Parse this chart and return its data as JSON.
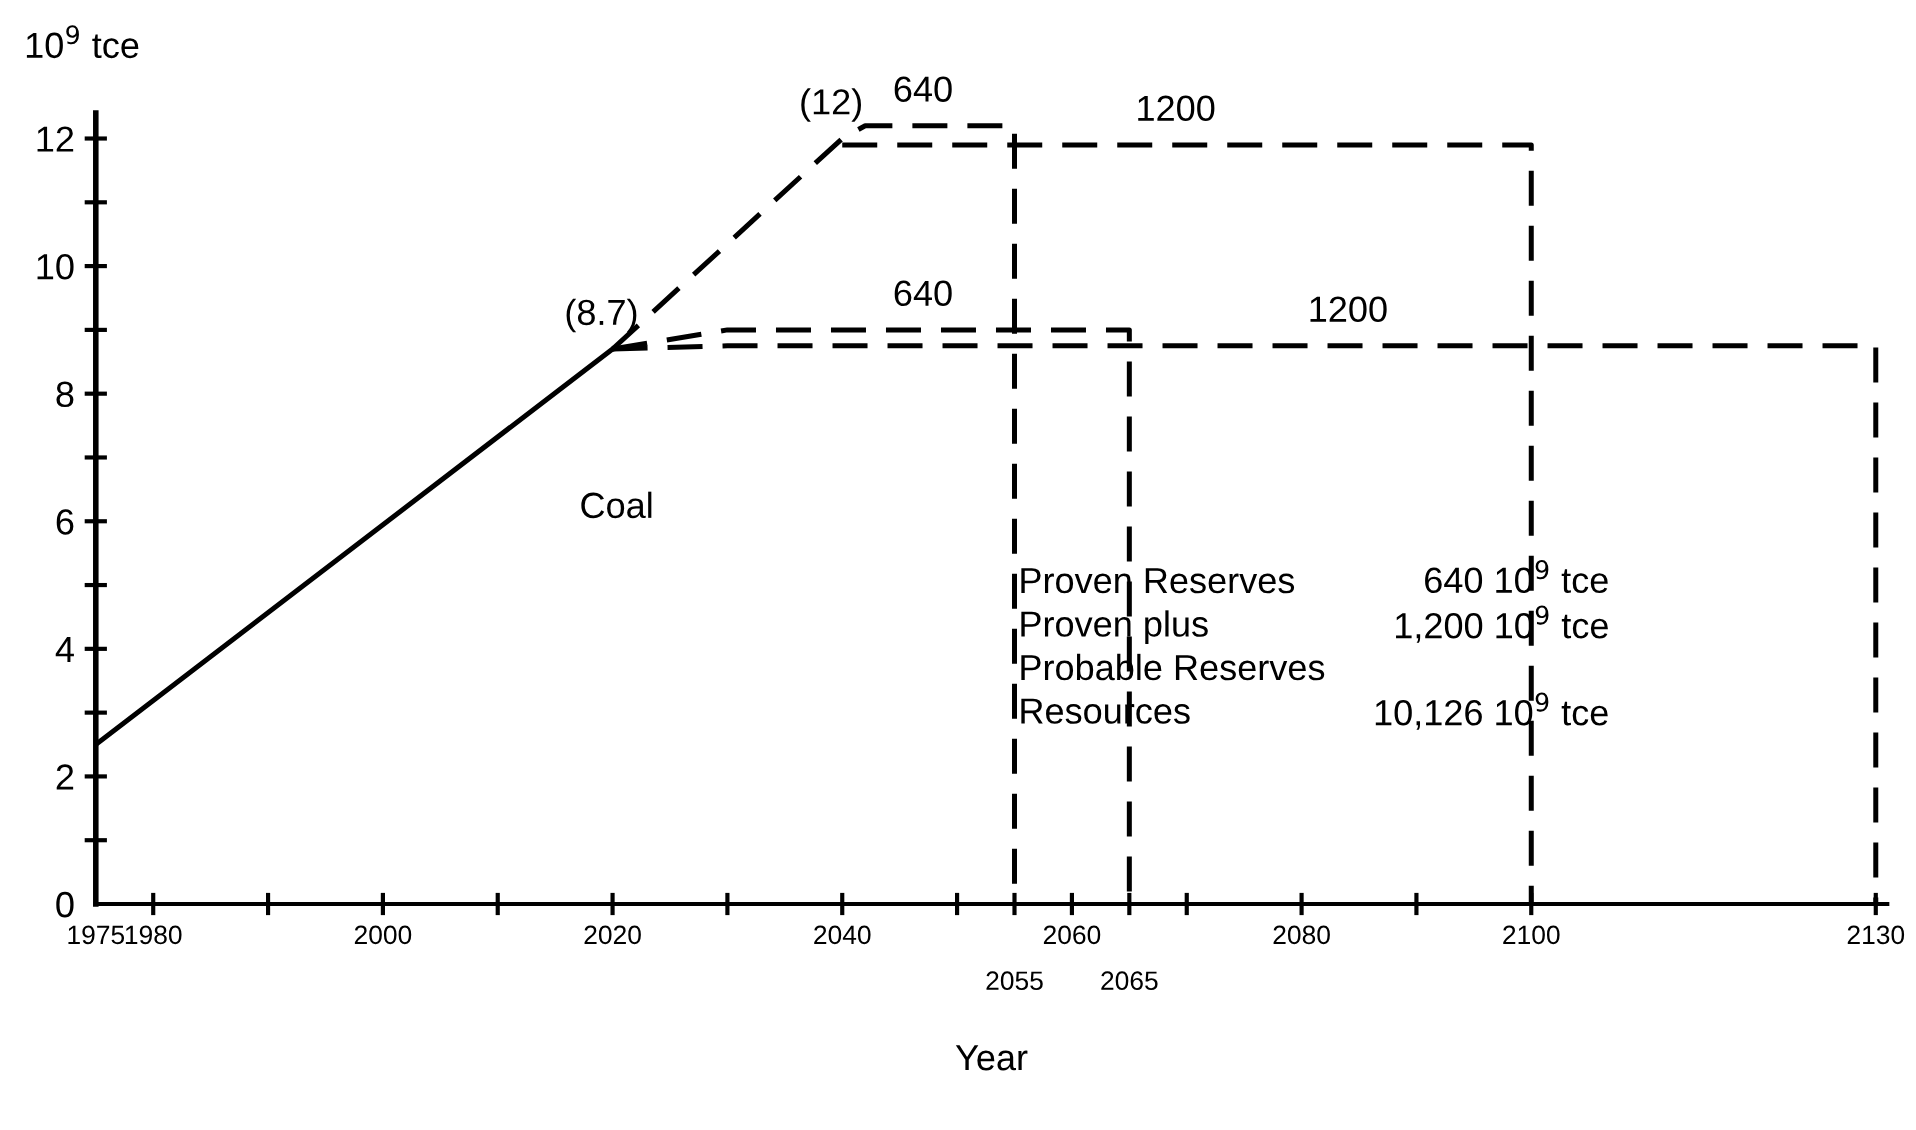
{
  "chart_data": {
    "type": "line",
    "xlabel": "Year",
    "ylabel": "10$^{9}$ tce",
    "xlim": [
      1975,
      2131
    ],
    "ylim": [
      0,
      12.4
    ],
    "xticks": [
      1975,
      1980,
      {
        "value": 1990,
        "label": null
      },
      2000,
      {
        "value": 2010,
        "label": null
      },
      2020,
      {
        "value": 2030,
        "label": null
      },
      2040,
      {
        "value": 2050,
        "label": null
      },
      {
        "value": 2055,
        "label": null
      },
      2060,
      {
        "value": 2065,
        "label": null
      },
      {
        "value": 2070,
        "label": null
      },
      2080,
      {
        "value": 2090,
        "label": null
      },
      2100,
      2130
    ],
    "yticks": [
      0,
      {
        "value": 1,
        "label": null
      },
      2,
      {
        "value": 3,
        "label": null
      },
      4,
      {
        "value": 5,
        "label": null
      },
      6,
      {
        "value": 7,
        "label": null
      },
      8,
      {
        "value": 9,
        "label": null
      },
      10,
      {
        "value": 11,
        "label": null
      },
      12
    ],
    "grid": false,
    "legend": false,
    "marker": "none",
    "series": [
      {
        "color": "#000000",
        "line_style": "solid",
        "x": [
          1975,
          2020
        ],
        "values": [
          2.5,
          8.7
        ]
      },
      {
        "color": "#000000",
        "line_style": "dashed",
        "x": [
          2020,
          2040,
          2042,
          2055,
          2055
        ],
        "values": [
          8.7,
          12,
          12.2,
          12.2,
          0
        ]
      },
      {
        "color": "#000000",
        "line_style": "dashed",
        "x": [
          2040,
          2100,
          2100
        ],
        "values": [
          11.9,
          11.9,
          0
        ]
      },
      {
        "color": "#000000",
        "line_style": "dashed",
        "x": [
          2020,
          2030,
          2065,
          2065
        ],
        "values": [
          8.7,
          9.0,
          9.0,
          0
        ]
      },
      {
        "color": "#000000",
        "line_style": "dashed",
        "x": [
          2020,
          2030,
          2130,
          2130
        ],
        "values": [
          8.7,
          8.75,
          8.75,
          0
        ]
      }
    ],
    "annotations": [
      {
        "text": "2055",
        "x": 2055,
        "y": 0
      },
      {
        "text": "2065",
        "x": 2065,
        "y": 0
      },
      {
        "text": "(12)",
        "x": 2040,
        "y": 12
      },
      {
        "text": "(8.7)",
        "x": 2020,
        "y": 8.7
      },
      {
        "text": "640",
        "x": 2048,
        "y": 12.2
      },
      {
        "text": "1200",
        "x": 2070,
        "y": 11.9
      },
      {
        "text": "640",
        "x": 2048,
        "y": 9.0
      },
      {
        "text": "1200",
        "x": 2085,
        "y": 8.75
      },
      "Coal",
      "Proven Reserves",
      "640 10$^{9}$ tce",
      "Proven plus",
      "1,200 10$^{9}$ tce",
      "Probable Reserves",
      "Resources",
      "10,126 10$^{9}$ tce"
    ]
  }
}
